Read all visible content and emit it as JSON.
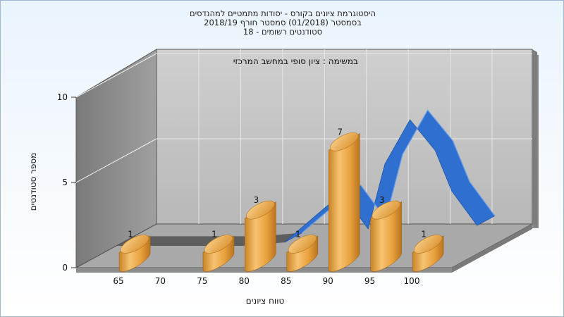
{
  "titles": [
    "היסטוגרמת ציונים בקורס - יסודות מתמטיים למהנדסים",
    "בסמסטר  (01/2018)  סמסטר חורף 2018/19",
    "סטודנטים רשומים - 18"
  ],
  "chart_data": {
    "type": "bar",
    "annotation": "במשימה : ציון סופי במחשב המרכזי",
    "xlabel": "טווח ציונים",
    "ylabel": "מספר סטודנטים",
    "x_ticks": [
      "65",
      "70",
      "75",
      "80",
      "85",
      "90",
      "95",
      "100"
    ],
    "y_ticks": [
      0,
      5,
      10
    ],
    "ylim": [
      0,
      10
    ],
    "bars": [
      {
        "x": 65,
        "value": 1
      },
      {
        "x": 75,
        "value": 1
      },
      {
        "x": 80,
        "value": 3
      },
      {
        "x": 85,
        "value": 1
      },
      {
        "x": 90,
        "value": 7
      },
      {
        "x": 95,
        "value": 3
      },
      {
        "x": 100,
        "value": 1
      }
    ],
    "curve": {
      "x": [
        60,
        65,
        70,
        75,
        80,
        85,
        87,
        90,
        92,
        95,
        98,
        100,
        103
      ],
      "y": [
        0,
        0,
        0,
        0,
        0.2,
        2.3,
        3.0,
        1.0,
        4.8,
        7.4,
        5.6,
        3.2,
        1.2
      ]
    },
    "colors": {
      "bar": "#e8a843",
      "curve": "#2f6fcf",
      "back_wall": "#c8c8c8",
      "side_wall": "#8e8e8e",
      "floor": "#a6a6a6"
    }
  }
}
